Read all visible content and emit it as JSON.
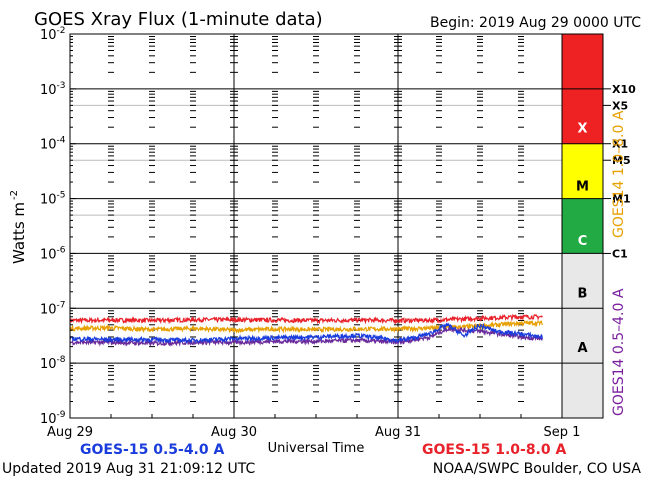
{
  "header": {
    "title": "GOES Xray Flux (1-minute data)",
    "begin": "Begin:  2019 Aug 29  0000 UTC"
  },
  "footer": {
    "updated": "Updated 2019 Aug 31 21:09:12 UTC",
    "credit": "NOAA/SWPC Boulder, CO USA"
  },
  "chart_data": {
    "type": "line",
    "title": "GOES Xray Flux (1-minute data)",
    "xlabel": "Universal Time",
    "ylabel": "Watts m",
    "ylabel_superscript": "-2",
    "yscale": "log",
    "ylim": [
      1e-09,
      0.01
    ],
    "y_ticks": [
      {
        "value": -2,
        "label": "10",
        "exp": "-2"
      },
      {
        "value": -3,
        "label": "10",
        "exp": "-3"
      },
      {
        "value": -4,
        "label": "10",
        "exp": "-4"
      },
      {
        "value": -5,
        "label": "10",
        "exp": "-5"
      },
      {
        "value": -6,
        "label": "10",
        "exp": "-6"
      },
      {
        "value": -7,
        "label": "10",
        "exp": "-7"
      },
      {
        "value": -8,
        "label": "10",
        "exp": "-8"
      },
      {
        "value": -9,
        "label": "10",
        "exp": "-9"
      }
    ],
    "xlim_days": [
      0,
      3
    ],
    "x_ticks": [
      {
        "day": 0,
        "label": "Aug 29"
      },
      {
        "day": 1,
        "label": "Aug 30"
      },
      {
        "day": 2,
        "label": "Aug 31"
      },
      {
        "day": 3,
        "label": "Sep 1"
      }
    ],
    "grid": true,
    "flare_classes": [
      {
        "label": "X",
        "color": "#ee2222"
      },
      {
        "label": "M",
        "color": "#ffff00"
      },
      {
        "label": "C",
        "color": "#22aa44"
      },
      {
        "label": "B",
        "color": "#e8e8e8"
      },
      {
        "label": "A",
        "color": "#e8e8e8"
      }
    ],
    "class_markers": [
      {
        "label": "X10",
        "value": 0.001
      },
      {
        "label": "X5",
        "value": 0.0005
      },
      {
        "label": "X1",
        "value": 0.0001
      },
      {
        "label": "M5",
        "value": 5e-05
      },
      {
        "label": "M1",
        "value": 1e-05
      },
      {
        "label": "C1",
        "value": 1e-06
      }
    ],
    "right_axis_labels": [
      {
        "text": "GOES14 1.0–8.0 A",
        "color": "#e8a000"
      },
      {
        "text": "GOES14 0.5–4.0 A",
        "color": "#7a1e9e"
      }
    ],
    "legend": [
      {
        "text": "GOES-15 0.5-4.0 A",
        "color": "#1a3cdc"
      },
      {
        "text": "GOES-15 1.0-8.0 A",
        "color": "#e8212a"
      }
    ],
    "series": [
      {
        "name": "GOES-15 1.0-8.0 A",
        "color": "#e8212a",
        "x": [
          0.0,
          0.25,
          0.5,
          0.75,
          1.0,
          1.25,
          1.5,
          1.75,
          2.0,
          2.25,
          2.5,
          2.75,
          2.88
        ],
        "y": [
          6e-08,
          6.1e-08,
          6e-08,
          6.2e-08,
          6.2e-08,
          6.1e-08,
          6e-08,
          6.1e-08,
          6e-08,
          6.1e-08,
          6.6e-08,
          7e-08,
          7e-08
        ]
      },
      {
        "name": "GOES14 1.0-8.0 A",
        "color": "#e8a000",
        "x": [
          0.0,
          0.25,
          0.5,
          0.75,
          1.0,
          1.25,
          1.5,
          1.75,
          2.0,
          2.25,
          2.5,
          2.75,
          2.88
        ],
        "y": [
          4.3e-08,
          4.4e-08,
          4.1e-08,
          4.3e-08,
          4e-08,
          4.2e-08,
          4.1e-08,
          4.2e-08,
          4.2e-08,
          4.4e-08,
          4.7e-08,
          5.4e-08,
          5.4e-08
        ]
      },
      {
        "name": "GOES-15 0.5-4.0 A",
        "color": "#1a3cdc",
        "x": [
          0.0,
          0.25,
          0.5,
          0.75,
          1.0,
          1.25,
          1.5,
          1.75,
          2.0,
          2.1,
          2.2,
          2.3,
          2.4,
          2.5,
          2.6,
          2.75,
          2.88
        ],
        "y": [
          2.8e-08,
          2.7e-08,
          2.7e-08,
          2.6e-08,
          2.8e-08,
          2.9e-08,
          3e-08,
          3.2e-08,
          2.6e-08,
          2.9e-08,
          3.5e-08,
          5e-08,
          3.1e-08,
          4.8e-08,
          3.8e-08,
          3.4e-08,
          3e-08
        ]
      },
      {
        "name": "GOES14 0.5-4.0 A",
        "color": "#6a2a9a",
        "x": [
          0.0,
          0.25,
          0.5,
          0.75,
          1.0,
          1.25,
          1.5,
          1.75,
          2.0,
          2.2,
          2.3,
          2.5,
          2.75,
          2.88
        ],
        "y": [
          2.4e-08,
          2.4e-08,
          2.3e-08,
          2.4e-08,
          2.4e-08,
          2.5e-08,
          2.5e-08,
          2.6e-08,
          2.4e-08,
          3e-08,
          4.2e-08,
          3.8e-08,
          3e-08,
          2.8e-08
        ]
      }
    ]
  }
}
